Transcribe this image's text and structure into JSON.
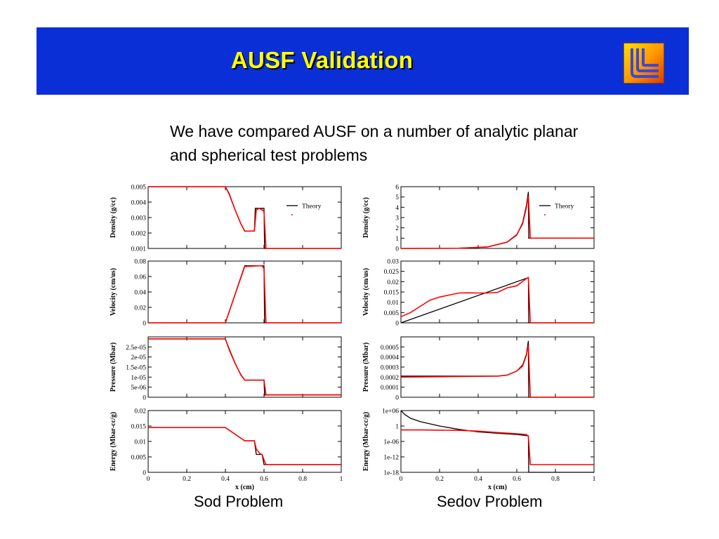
{
  "slide": {
    "title": "AUSF Validation",
    "intro": "We have compared AUSF on a number of analytic planar and spherical test problems",
    "captions": [
      "Sod Problem",
      "Sedov Problem"
    ]
  },
  "chart_data": [
    {
      "type": "line",
      "panel": "sod-density",
      "ylabel": "Density (g/cc)",
      "xlim": [
        0,
        1
      ],
      "ylim": [
        0.001,
        0.005
      ],
      "yticks": [
        "0.001",
        "0.002",
        "0.003",
        "0.004",
        "0.005"
      ],
      "legend": [
        "Theory",
        ""
      ],
      "legend_position": "top-right",
      "series": [
        {
          "name": "Theory",
          "color": "#000000",
          "x": [
            0,
            0.4,
            0.42,
            0.45,
            0.48,
            0.5,
            0.55,
            0.555,
            0.575,
            0.58,
            0.6,
            0.603,
            1.0
          ],
          "y": [
            0.005,
            0.005,
            0.00455,
            0.0035,
            0.0026,
            0.00213,
            0.00213,
            0.0036,
            0.0036,
            0.0036,
            0.0036,
            0.001,
            0.001
          ]
        },
        {
          "color": "#ff0000",
          "x": [
            0,
            0.4,
            0.42,
            0.45,
            0.48,
            0.5,
            0.55,
            0.56,
            0.575,
            0.59,
            0.6,
            0.61,
            1.0
          ],
          "y": [
            0.005,
            0.005,
            0.0045,
            0.0035,
            0.0026,
            0.00212,
            0.00213,
            0.0035,
            0.0036,
            0.0035,
            0.0034,
            0.001,
            0.001
          ]
        }
      ]
    },
    {
      "type": "line",
      "panel": "sod-velocity",
      "ylabel": "Velocity (cm/us)",
      "xlim": [
        0,
        1
      ],
      "ylim": [
        0,
        0.08
      ],
      "yticks": [
        "0",
        "0.02",
        "0.04",
        "0.06",
        "0.08"
      ],
      "series": [
        {
          "name": "Theory",
          "color": "#000000",
          "x": [
            0,
            0.4,
            0.5,
            0.6,
            0.603,
            1.0
          ],
          "y": [
            0,
            0,
            0.074,
            0.074,
            0,
            0
          ]
        },
        {
          "color": "#ff0000",
          "x": [
            0,
            0.4,
            0.5,
            0.59,
            0.6,
            0.61,
            1.0
          ],
          "y": [
            0,
            0,
            0.073,
            0.074,
            0.07,
            0,
            0
          ]
        }
      ]
    },
    {
      "type": "line",
      "panel": "sod-pressure",
      "ylabel": "Pressure (Mbar)",
      "xlim": [
        0,
        1
      ],
      "ylim": [
        0,
        3e-05
      ],
      "yticks": [
        "0",
        "5e-06",
        "1e-05",
        "1.5e-05",
        "2e-05",
        "2.5e-05"
      ],
      "series": [
        {
          "name": "Theory",
          "color": "#000000",
          "x": [
            0,
            0.4,
            0.42,
            0.45,
            0.48,
            0.5,
            0.6,
            0.603,
            1.0
          ],
          "y": [
            2.9e-05,
            2.9e-05,
            2.4e-05,
            1.7e-05,
            1.1e-05,
            8.5e-06,
            8.5e-06,
            1.1e-06,
            1.1e-06
          ]
        },
        {
          "color": "#ff0000",
          "x": [
            0,
            0.4,
            0.42,
            0.45,
            0.48,
            0.5,
            0.6,
            0.61,
            1.0
          ],
          "y": [
            2.9e-05,
            2.9e-05,
            2.35e-05,
            1.68e-05,
            1.12e-05,
            8.5e-06,
            8.5e-06,
            1.2e-06,
            1.2e-06
          ]
        }
      ]
    },
    {
      "type": "line",
      "panel": "sod-energy",
      "ylabel": "Energy (Mbar-cc/g)",
      "xlabel": "x (cm)",
      "xlim": [
        0,
        1
      ],
      "ylim": [
        0,
        0.02
      ],
      "yticks": [
        "0",
        "0.005",
        "0.01",
        "0.015",
        "0.02"
      ],
      "xticks": [
        "0",
        "0.2",
        "0.4",
        "0.6",
        "0.8",
        "1"
      ],
      "series": [
        {
          "name": "Theory",
          "color": "#000000",
          "x": [
            0,
            0.4,
            0.5,
            0.55,
            0.56,
            0.59,
            0.6,
            1.0
          ],
          "y": [
            0.0145,
            0.0145,
            0.0102,
            0.0102,
            0.0058,
            0.0058,
            0.0025,
            0.0025
          ]
        },
        {
          "color": "#ff0000",
          "x": [
            0,
            0.4,
            0.5,
            0.55,
            0.56,
            0.58,
            0.59,
            0.6,
            0.61,
            1.0
          ],
          "y": [
            0.0145,
            0.0145,
            0.0102,
            0.0102,
            0.0075,
            0.006,
            0.0058,
            0.004,
            0.0025,
            0.0025
          ]
        }
      ]
    },
    {
      "type": "line",
      "panel": "sedov-density",
      "ylabel": "Density (g/cc)",
      "xlim": [
        0,
        1
      ],
      "ylim": [
        0,
        6
      ],
      "yticks": [
        "0",
        "1",
        "2",
        "3",
        "4",
        "5",
        "6"
      ],
      "legend": [
        "Theory",
        ""
      ],
      "legend_position": "top-right",
      "series": [
        {
          "name": "Theory",
          "color": "#000000",
          "x": [
            0,
            0.3,
            0.45,
            0.55,
            0.6,
            0.63,
            0.65,
            0.66,
            0.662,
            1.0
          ],
          "y": [
            0,
            0.02,
            0.15,
            0.6,
            1.3,
            2.5,
            4.2,
            5.5,
            1.0,
            1.0
          ]
        },
        {
          "color": "#ff0000",
          "x": [
            0,
            0.3,
            0.45,
            0.55,
            0.6,
            0.63,
            0.65,
            0.66,
            0.67,
            1.0
          ],
          "y": [
            0,
            0.02,
            0.15,
            0.62,
            1.35,
            2.4,
            4.0,
            5.1,
            1.0,
            1.0
          ]
        }
      ]
    },
    {
      "type": "line",
      "panel": "sedov-velocity",
      "ylabel": "Velocity (cm/us)",
      "xlim": [
        0,
        1
      ],
      "ylim": [
        0,
        0.03
      ],
      "yticks": [
        "0",
        "0.005",
        "0.01",
        "0.015",
        "0.02",
        "0.025",
        "0.03"
      ],
      "series": [
        {
          "name": "Theory",
          "color": "#000000",
          "x": [
            0,
            0.66,
            0.662,
            1.0
          ],
          "y": [
            0,
            0.022,
            0,
            0
          ]
        },
        {
          "color": "#ff0000",
          "x": [
            0,
            0.05,
            0.1,
            0.15,
            0.2,
            0.25,
            0.3,
            0.35,
            0.4,
            0.45,
            0.5,
            0.55,
            0.6,
            0.65,
            0.66,
            0.67,
            1.0
          ],
          "y": [
            0.003,
            0.005,
            0.008,
            0.011,
            0.0125,
            0.0135,
            0.0145,
            0.0146,
            0.0145,
            0.0145,
            0.0148,
            0.017,
            0.018,
            0.0215,
            0.022,
            0,
            0
          ]
        }
      ]
    },
    {
      "type": "line",
      "panel": "sedov-pressure",
      "ylabel": "Pressure (Mbar)",
      "xlim": [
        0,
        1
      ],
      "ylim": [
        0,
        0.0006
      ],
      "yticks": [
        "0",
        "0.0001",
        "0.0002",
        "0.0003",
        "0.0004",
        "0.0005"
      ],
      "series": [
        {
          "name": "Theory",
          "color": "#000000",
          "x": [
            0,
            0.5,
            0.55,
            0.6,
            0.63,
            0.65,
            0.66,
            0.662,
            1.0
          ],
          "y": [
            0.00021,
            0.00021,
            0.00022,
            0.00026,
            0.00032,
            0.00043,
            0.00056,
            0,
            0
          ]
        },
        {
          "color": "#ff0000",
          "x": [
            0,
            0.5,
            0.55,
            0.6,
            0.63,
            0.65,
            0.66,
            0.67,
            1.0
          ],
          "y": [
            0.0002,
            0.00021,
            0.00022,
            0.00026,
            0.00031,
            0.00042,
            0.00052,
            0,
            0
          ]
        }
      ]
    },
    {
      "type": "line",
      "panel": "sedov-energy",
      "ylabel": "Energy (Mbar-cc/g)",
      "xlabel": "x (cm)",
      "xlim": [
        0,
        1
      ],
      "ylim": [
        1e-18,
        1000000.0
      ],
      "yscale": "log",
      "yticks": [
        "1e-18",
        "1e-12",
        "1e-06",
        "1",
        "1e+06"
      ],
      "xticks": [
        "0",
        "0.2",
        "0.4",
        "0.6",
        "0.8",
        "1"
      ],
      "series": [
        {
          "name": "Theory",
          "color": "#000000",
          "x": [
            0,
            0.02,
            0.05,
            0.1,
            0.2,
            0.3,
            0.4,
            0.5,
            0.6,
            0.66,
            0.662,
            1.0
          ],
          "y": [
            1000000.0,
            30000.0,
            1000.0,
            50,
            1,
            0.05,
            0.005,
            0.0015,
            0.0005,
            0.00015,
            1e-18,
            1e-18
          ]
        },
        {
          "color": "#ff0000",
          "x": [
            0,
            0.1,
            0.2,
            0.3,
            0.4,
            0.5,
            0.6,
            0.65,
            0.66,
            0.67,
            1.0
          ],
          "y": [
            0.03,
            0.03,
            0.025,
            0.02,
            0.01,
            0.003,
            0.001,
            0.0005,
            0.0001,
            1e-15,
            1e-15
          ]
        }
      ]
    }
  ]
}
